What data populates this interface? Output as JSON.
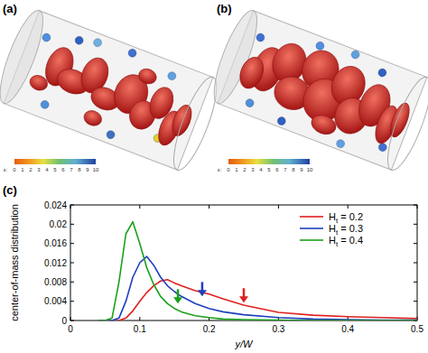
{
  "figure": {
    "panel_labels": [
      "(a)",
      "(b)",
      "(c)"
    ],
    "colorbars": [
      {
        "label": "ε:",
        "ticks": [
          0,
          1,
          2,
          3,
          4,
          5,
          6,
          7,
          8,
          9,
          10
        ]
      },
      {
        "label": "ε:",
        "ticks": [
          0,
          1,
          2,
          3,
          4,
          5,
          6,
          7,
          8,
          9,
          10
        ]
      }
    ]
  },
  "chart_data": {
    "type": "line",
    "x_label": "y/W",
    "y_label": "center-of-mass distribution",
    "xlim": [
      0,
      0.5
    ],
    "ylim": [
      0,
      0.024
    ],
    "xticks": [
      0,
      0.1,
      0.2,
      0.3,
      0.4,
      0.5
    ],
    "yticks": [
      0,
      0.004,
      0.008,
      0.012,
      0.016,
      0.02,
      0.024
    ],
    "legend": "upper right",
    "x": [
      0.04,
      0.05,
      0.06,
      0.07,
      0.08,
      0.09,
      0.1,
      0.11,
      0.12,
      0.13,
      0.14,
      0.15,
      0.16,
      0.18,
      0.2,
      0.22,
      0.25,
      0.3,
      0.35,
      0.4,
      0.45,
      0.5
    ],
    "series": [
      {
        "name": "Ht = 0.2",
        "color": "#e02020",
        "values": [
          0,
          0,
          0,
          0,
          0.0005,
          0.002,
          0.004,
          0.0058,
          0.0072,
          0.0082,
          0.0085,
          0.0078,
          0.0072,
          0.0062,
          0.0055,
          0.0045,
          0.0032,
          0.0017,
          0.0011,
          0.0008,
          0.0006,
          0.0004
        ],
        "arrow_x": 0.25,
        "arrow_y": 0.0037
      },
      {
        "name": "Ht = 0.3",
        "color": "#1f3fbf",
        "values": [
          0,
          0,
          0,
          0.0005,
          0.004,
          0.009,
          0.012,
          0.0133,
          0.0115,
          0.009,
          0.0072,
          0.006,
          0.005,
          0.0035,
          0.0025,
          0.0018,
          0.0012,
          0.0006,
          0.0003,
          0.0002,
          0.0001,
          0.0001
        ],
        "arrow_x": 0.19,
        "arrow_y": 0.005
      },
      {
        "name": "Ht = 0.4",
        "color": "#1aa01a",
        "values": [
          0,
          0,
          0.0005,
          0.008,
          0.018,
          0.0205,
          0.016,
          0.011,
          0.0075,
          0.005,
          0.0035,
          0.0025,
          0.0018,
          0.001,
          0.0006,
          0.0003,
          0.0002,
          0.0001,
          0,
          0,
          0,
          0
        ],
        "arrow_x": 0.155,
        "arrow_y": 0.0035
      }
    ]
  }
}
